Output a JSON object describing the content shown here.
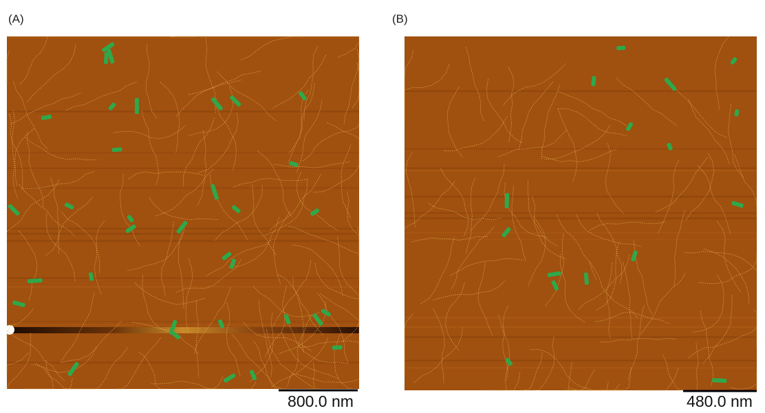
{
  "panels": [
    {
      "label": "(A)",
      "scale_bar": "800.0 nm"
    },
    {
      "label": "(B)",
      "scale_bar": "480.0 nm"
    }
  ]
}
